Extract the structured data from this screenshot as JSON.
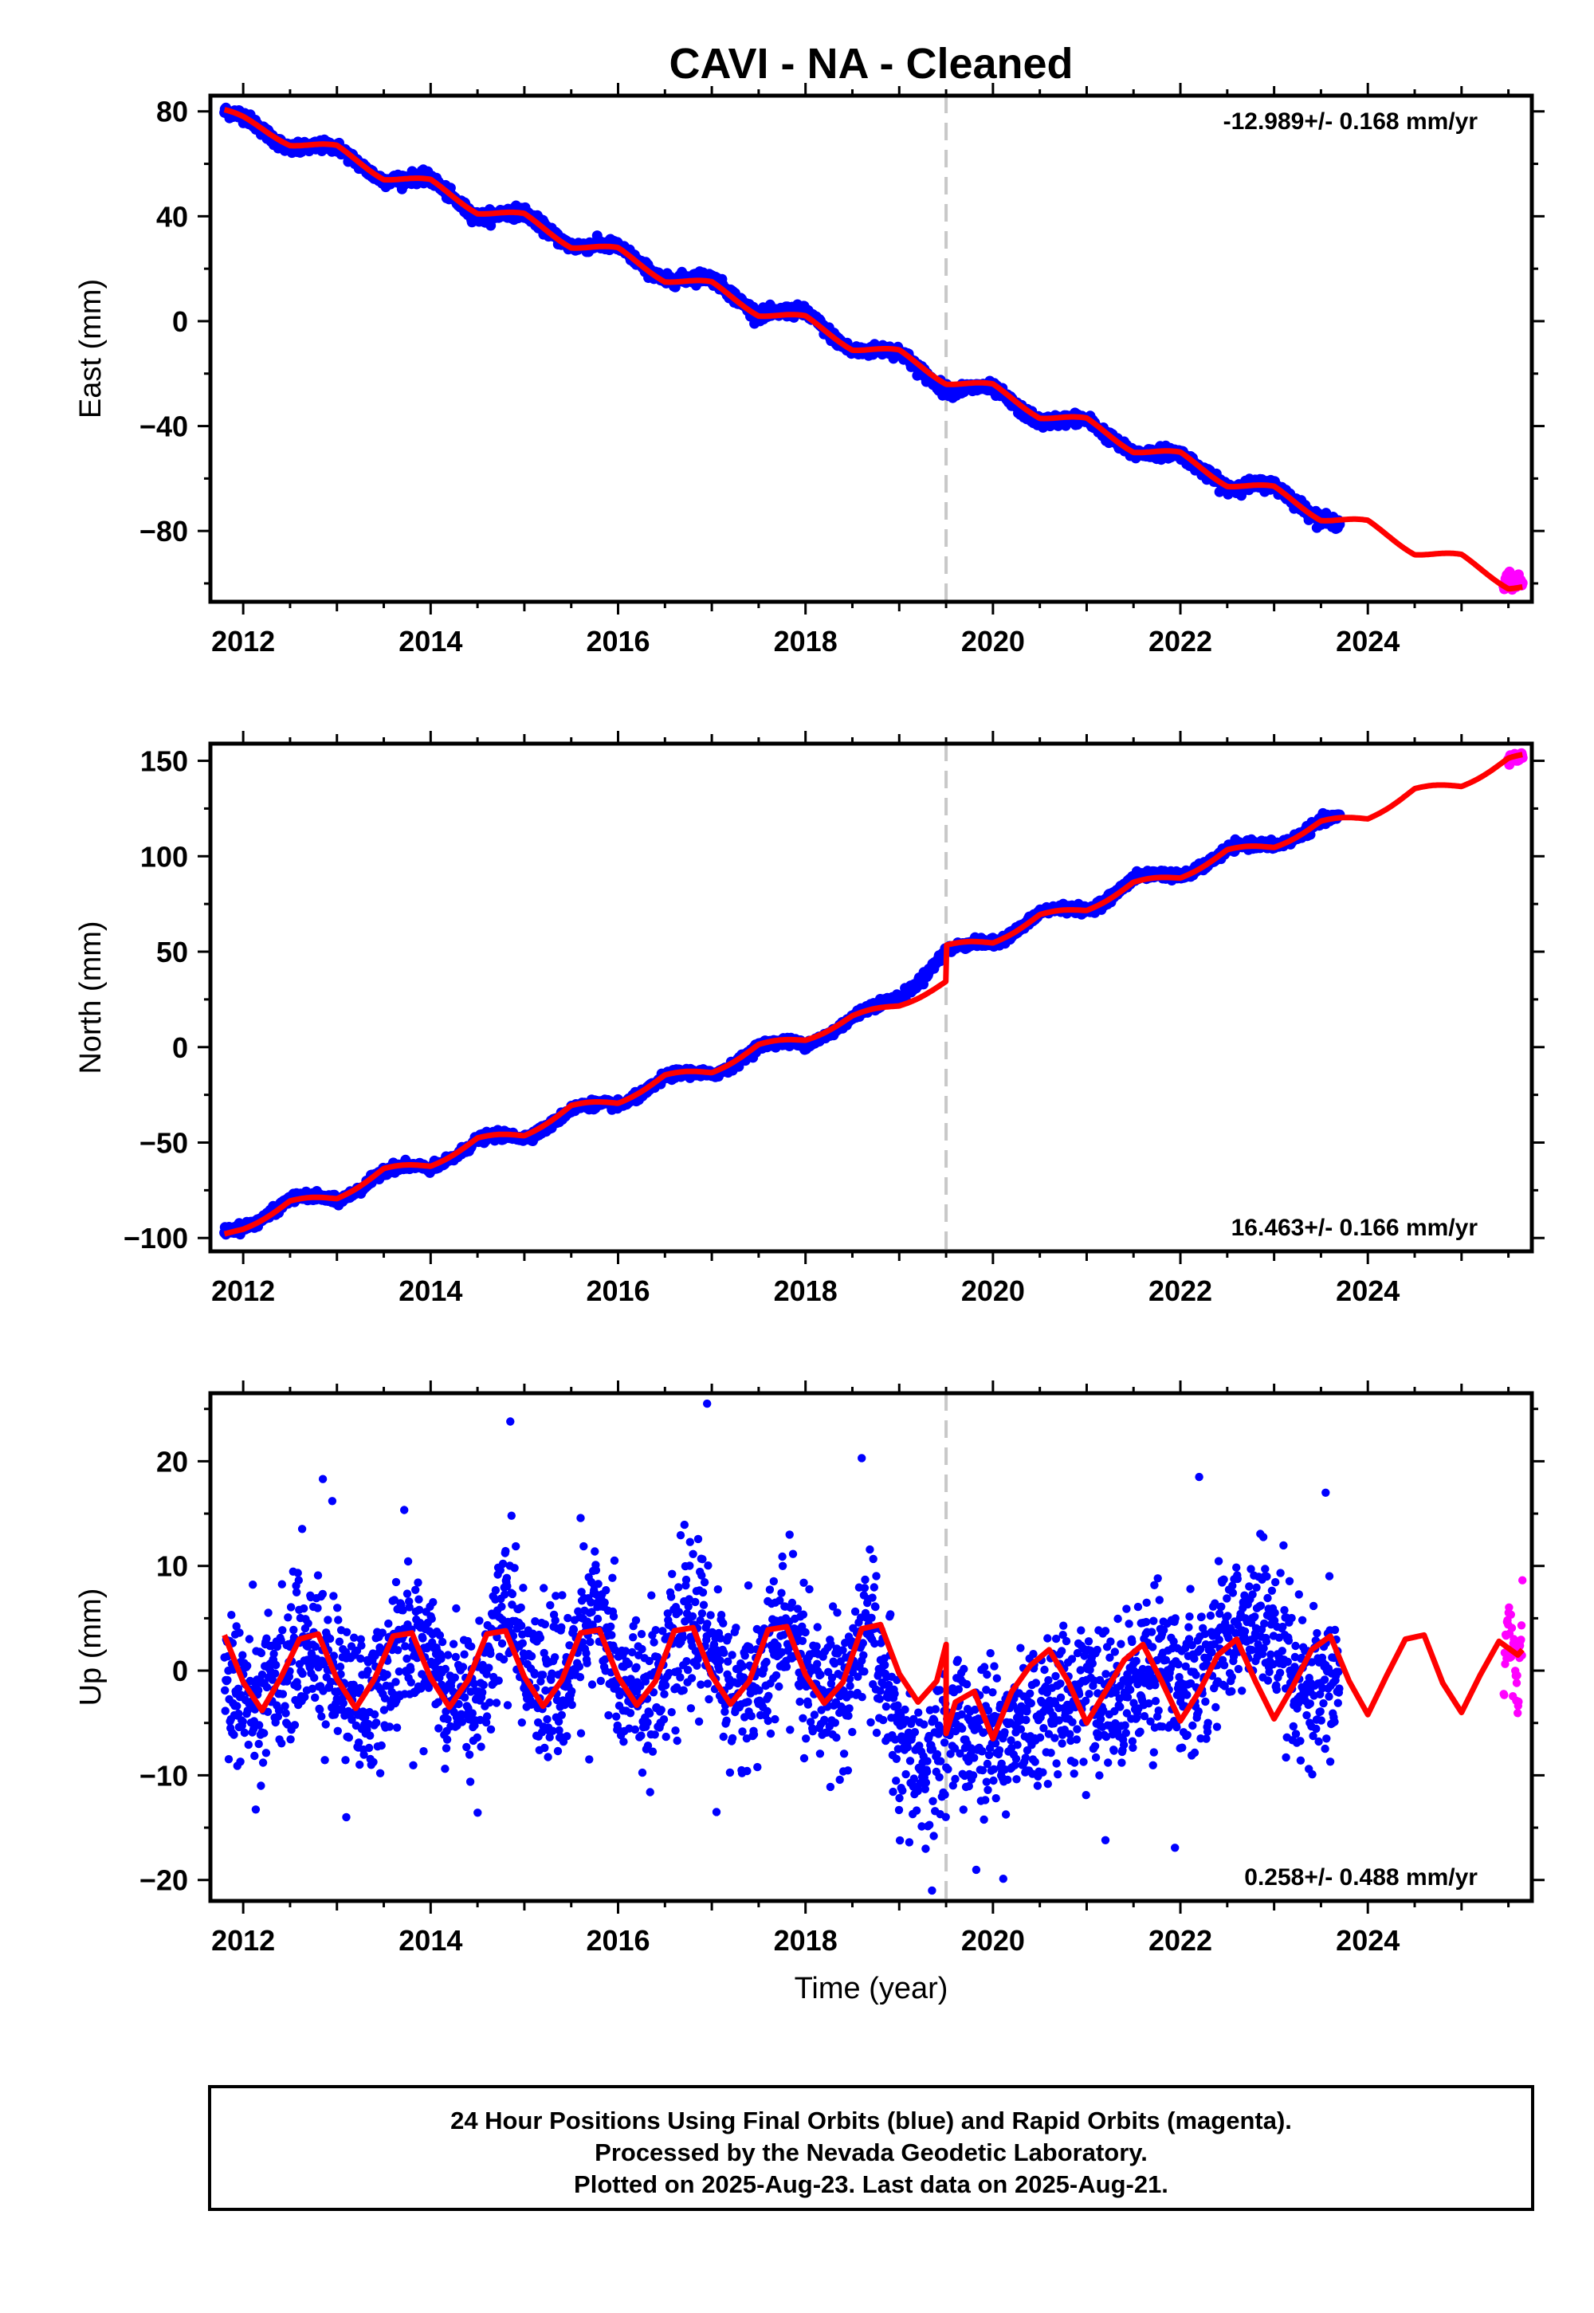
{
  "title": "CAVI  - NA - Cleaned",
  "colors": {
    "final_orbits": "#0000ff",
    "rapid_orbits": "#ff00ff",
    "model": "#ff0000",
    "break_line": "#c8c8c8"
  },
  "footer": {
    "line1": "24 Hour Positions Using Final Orbits (blue) and Rapid Orbits (magenta).",
    "line2": "Processed by the Nevada Geodetic Laboratory.",
    "line3": "Plotted on 2025-Aug-23. Last data on 2025-Aug-21."
  },
  "chart_data": [
    {
      "type": "scatter",
      "component": "east",
      "ylabel": "East (mm)",
      "xlabel": "",
      "rate_text": "-12.989+/- 0.168 mm/yr",
      "rate_position": "top-right",
      "xlim": [
        2011.65,
        2025.75
      ],
      "ylim": [
        -107,
        86
      ],
      "xticks": [
        2012,
        2014,
        2016,
        2018,
        2020,
        2022,
        2024
      ],
      "xtick_labels": [
        "2012",
        "2014",
        "2016",
        "2018",
        "2020",
        "2022",
        "2024"
      ],
      "yticks": [
        80,
        40,
        0,
        -40,
        -80
      ],
      "ytick_labels": [
        "80",
        "40",
        "0",
        "−40",
        "−80"
      ],
      "break_epoch": 2019.5,
      "seasonal": {
        "amplitude": 2.5,
        "phase": 0.3
      },
      "series": [
        {
          "name": "Final Orbits (blue)",
          "x": [
            2011.8,
            2012.0,
            2012.5,
            2013.0,
            2013.5,
            2014.0,
            2014.5,
            2015.0,
            2015.5,
            2016.0,
            2016.5,
            2017.0,
            2017.5,
            2018.0,
            2018.5,
            2019.0,
            2019.5,
            2020.0,
            2020.5,
            2021.0,
            2021.5,
            2022.0,
            2022.5,
            2023.0,
            2023.5,
            2023.7
          ],
          "y": [
            79,
            77,
            67,
            65,
            55,
            53,
            41,
            40,
            30,
            27,
            17,
            15,
            4,
            2,
            -10,
            -13,
            -25,
            -27,
            -37,
            -39,
            -49,
            -52,
            -62,
            -64,
            -74,
            -77
          ]
        },
        {
          "name": "Rapid Orbits (magenta)",
          "x": [
            2025.45,
            2025.5,
            2025.55,
            2025.6,
            2025.65
          ],
          "y": [
            -100,
            -97,
            -102,
            -98,
            -101
          ]
        },
        {
          "name": "Model",
          "x": [
            2011.8,
            2012.0,
            2012.5,
            2013.0,
            2013.5,
            2014.0,
            2014.5,
            2015.0,
            2015.5,
            2016.0,
            2016.5,
            2017.0,
            2017.5,
            2018.0,
            2018.5,
            2019.0,
            2019.5,
            2020.0,
            2020.5,
            2021.0,
            2021.5,
            2022.0,
            2022.5,
            2023.0,
            2023.5,
            2024.0,
            2024.5,
            2025.0,
            2025.5,
            2025.65
          ],
          "y": [
            80,
            77,
            68,
            66,
            55,
            53,
            42,
            40,
            29,
            27,
            16,
            14,
            3,
            1,
            -10,
            -12,
            -23,
            -25,
            -36,
            -38,
            -49,
            -51,
            -62,
            -64,
            -75,
            -77,
            -88,
            -90,
            -101,
            -101
          ]
        }
      ]
    },
    {
      "type": "scatter",
      "component": "north",
      "ylabel": "North (mm)",
      "xlabel": "",
      "rate_text": "16.463+/- 0.166 mm/yr",
      "rate_position": "bottom-right",
      "xlim": [
        2011.65,
        2025.75
      ],
      "ylim": [
        -107,
        159
      ],
      "xticks": [
        2012,
        2014,
        2016,
        2018,
        2020,
        2022,
        2024
      ],
      "xtick_labels": [
        "2012",
        "2014",
        "2016",
        "2018",
        "2020",
        "2022",
        "2024"
      ],
      "yticks": [
        150,
        100,
        50,
        0,
        -50,
        -100
      ],
      "ytick_labels": [
        "150",
        "100",
        "50",
        "0",
        "−50",
        "−100"
      ],
      "break_epoch": 2019.5,
      "seasonal": {
        "amplitude": 3,
        "phase": 0.55
      },
      "series": [
        {
          "name": "Final Orbits (blue)",
          "x": [
            2011.8,
            2012.0,
            2012.5,
            2013.0,
            2013.5,
            2014.0,
            2014.5,
            2015.0,
            2015.5,
            2016.0,
            2016.5,
            2017.0,
            2017.5,
            2018.0,
            2018.5,
            2019.0,
            2019.5,
            2020.0,
            2020.5,
            2021.0,
            2021.5,
            2022.0,
            2022.5,
            2023.0,
            2023.5,
            2023.7
          ],
          "y": [
            -98,
            -94,
            -80,
            -80,
            -65,
            -63,
            -49,
            -47,
            -33,
            -30,
            -16,
            -14,
            0,
            2,
            15,
            26,
            50,
            55,
            70,
            72,
            88,
            90,
            103,
            106,
            118,
            119
          ]
        },
        {
          "name": "Rapid Orbits (magenta)",
          "x": [
            2025.5,
            2025.55,
            2025.6,
            2025.65
          ],
          "y": [
            150,
            152,
            151,
            153
          ]
        },
        {
          "name": "Model",
          "x": [
            2011.8,
            2012.0,
            2012.5,
            2013.0,
            2013.5,
            2014.0,
            2014.5,
            2015.0,
            2015.5,
            2016.0,
            2016.5,
            2017.0,
            2017.5,
            2018.0,
            2018.5,
            2019.0,
            2019.5,
            2019.5,
            2020.0,
            2020.5,
            2021.0,
            2021.5,
            2022.0,
            2022.5,
            2023.0,
            2023.5,
            2024.0,
            2024.5,
            2025.0,
            2025.5,
            2025.65
          ],
          "y": [
            -99,
            -95,
            -81,
            -79,
            -64,
            -62,
            -48,
            -46,
            -31,
            -29,
            -15,
            -13,
            1,
            4,
            16,
            22,
            34,
            53,
            55,
            69,
            72,
            86,
            89,
            103,
            105,
            118,
            120,
            135,
            137,
            151,
            152
          ]
        }
      ]
    },
    {
      "type": "scatter",
      "component": "up",
      "ylabel": "Up (mm)",
      "xlabel": "Time (year)",
      "rate_text": "0.258+/- 0.488 mm/yr",
      "rate_position": "bottom-right",
      "xlim": [
        2011.65,
        2025.75
      ],
      "ylim": [
        -22,
        26.5
      ],
      "xticks": [
        2012,
        2014,
        2016,
        2018,
        2020,
        2022,
        2024
      ],
      "xtick_labels": [
        "2012",
        "2014",
        "2016",
        "2018",
        "2020",
        "2022",
        "2024"
      ],
      "yticks": [
        20,
        10,
        0,
        -10,
        -20
      ],
      "ytick_labels": [
        "20",
        "10",
        "0",
        "−10",
        "−20"
      ],
      "break_epoch": 2019.5,
      "seasonal": {
        "amplitude": 4,
        "phase": 0.62
      },
      "series": [
        {
          "name": "Final Orbits (blue)",
          "x": [
            2011.8,
            2012.1,
            2012.4,
            2012.7,
            2013.0,
            2013.3,
            2013.6,
            2013.9,
            2014.2,
            2014.5,
            2014.8,
            2015.1,
            2015.4,
            2015.7,
            2016.0,
            2016.3,
            2016.6,
            2016.9,
            2017.2,
            2017.5,
            2017.8,
            2018.1,
            2018.4,
            2018.7,
            2019.0,
            2019.3,
            2019.6,
            2019.9,
            2020.2,
            2020.5,
            2020.8,
            2021.1,
            2021.4,
            2021.7,
            2022.0,
            2022.3,
            2022.6,
            2022.9,
            2023.2,
            2023.5,
            2023.7
          ],
          "y": [
            0,
            -4,
            0,
            3,
            -1,
            -4,
            1,
            3,
            -2,
            -3,
            7,
            -1,
            -2,
            6,
            0,
            -3,
            2,
            5,
            -2,
            -1,
            4,
            -2,
            -2,
            5,
            -8,
            -10,
            -5,
            -7,
            -6,
            -4,
            -2,
            -3,
            -2,
            1,
            -1,
            1,
            4,
            5,
            -2,
            -3,
            0
          ]
        },
        {
          "name": "Rapid Orbits (magenta)",
          "x": [
            2025.45,
            2025.5,
            2025.55,
            2025.6,
            2025.65
          ],
          "y": [
            -5,
            7,
            2,
            -3,
            8
          ]
        },
        {
          "name": "Model",
          "x": [
            2011.8,
            2012.0,
            2012.2,
            2012.4,
            2012.6,
            2012.8,
            2013.0,
            2013.2,
            2013.4,
            2013.6,
            2013.8,
            2014.0,
            2014.2,
            2014.4,
            2014.6,
            2014.8,
            2015.0,
            2015.2,
            2015.4,
            2015.6,
            2015.8,
            2016.0,
            2016.2,
            2016.4,
            2016.6,
            2016.8,
            2017.0,
            2017.2,
            2017.4,
            2017.6,
            2017.8,
            2018.0,
            2018.2,
            2018.4,
            2018.6,
            2018.8,
            2019.0,
            2019.2,
            2019.4,
            2019.5,
            2019.5,
            2019.6,
            2019.8,
            2020.0,
            2020.2,
            2020.4,
            2020.6,
            2020.8,
            2021.0,
            2021.2,
            2021.4,
            2021.6,
            2021.8,
            2022.0,
            2022.2,
            2022.4,
            2022.6,
            2022.8,
            2023.0,
            2023.2,
            2023.4,
            2023.6,
            2023.8,
            2024.0,
            2024.2,
            2024.4,
            2024.6,
            2024.8,
            2025.0,
            2025.2,
            2025.4,
            2025.6,
            2025.65
          ],
          "y": [
            3.4,
            -1.1,
            -3.8,
            -0.7,
            3.0,
            3.5,
            -0.8,
            -3.6,
            -0.8,
            3.3,
            3.6,
            -0.7,
            -3.5,
            -0.9,
            3.5,
            3.8,
            -0.6,
            -3.4,
            -0.9,
            3.6,
            3.9,
            -0.6,
            -3.3,
            -1.0,
            3.8,
            4.1,
            -0.5,
            -3.2,
            -1.0,
            3.9,
            4.2,
            -0.4,
            -3.1,
            -1.1,
            4.0,
            4.4,
            -0.3,
            -3.0,
            -1.0,
            2.5,
            -6.0,
            -3.0,
            -2.0,
            -6.5,
            -2.0,
            0.5,
            2.0,
            -1.0,
            -5.0,
            -2.0,
            1.0,
            2.5,
            -1.0,
            -4.8,
            -2.0,
            1.5,
            3.0,
            -1.0,
            -4.6,
            -1.5,
            2.0,
            3.3,
            -1.0,
            -4.2,
            -0.5,
            3.0,
            3.4,
            -1.2,
            -4.0,
            -0.4,
            2.8,
            1.5,
            2.0
          ]
        }
      ]
    }
  ]
}
